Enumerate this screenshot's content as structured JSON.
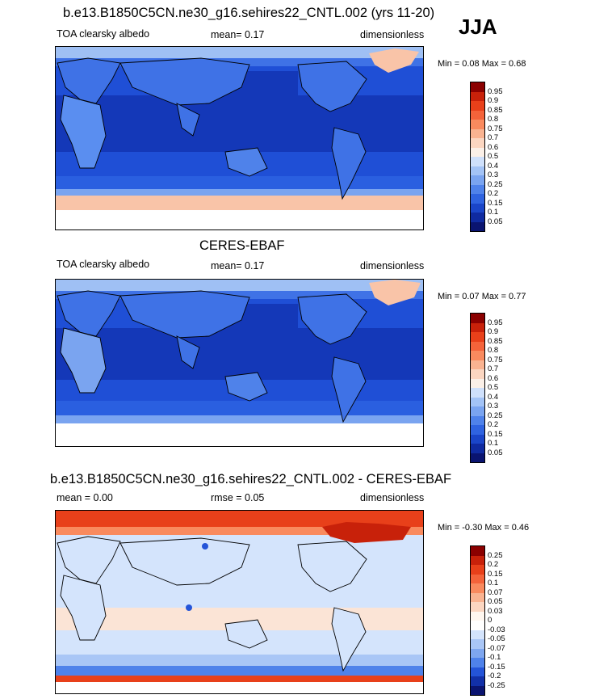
{
  "season": "JJA",
  "panels": [
    {
      "title": "b.e13.B1850C5CN.ne30_g16.sehires22_CNTL.002 (yrs 11-20)",
      "left_label": "TOA clearsky albedo",
      "center_label": "mean=  0.17",
      "right_label": "dimensionless",
      "minmax": "Min =   0.08 Max =   0.68",
      "levels": [
        "0.95",
        "0.9",
        "0.85",
        "0.8",
        "0.75",
        "0.7",
        "0.6",
        "0.5",
        "0.4",
        "0.3",
        "0.25",
        "0.2",
        "0.15",
        "0.1",
        "0.05"
      ],
      "colors": [
        "#8b0000",
        "#c8210a",
        "#e8401a",
        "#f4633a",
        "#f98a5e",
        "#f9b391",
        "#fbd6c1",
        "#fbf0e8",
        "#cfe0fb",
        "#a3c3f6",
        "#7aa4f0",
        "#4f82ea",
        "#2f63e0",
        "#1a45c8",
        "#0f2aa0",
        "#0a1470"
      ]
    },
    {
      "title": "CERES-EBAF",
      "left_label": "TOA clearsky albedo",
      "center_label": "mean=  0.17",
      "right_label": "dimensionless",
      "minmax": "Min =   0.07 Max =   0.77",
      "levels": [
        "0.95",
        "0.9",
        "0.85",
        "0.8",
        "0.75",
        "0.7",
        "0.6",
        "0.5",
        "0.4",
        "0.3",
        "0.25",
        "0.2",
        "0.15",
        "0.1",
        "0.05"
      ],
      "colors": [
        "#8b0000",
        "#c8210a",
        "#e8401a",
        "#f4633a",
        "#f98a5e",
        "#f9b391",
        "#fbd6c1",
        "#fbf0e8",
        "#cfe0fb",
        "#a3c3f6",
        "#7aa4f0",
        "#4f82ea",
        "#2f63e0",
        "#1a45c8",
        "#0f2aa0",
        "#0a1470"
      ]
    },
    {
      "title": "b.e13.B1850C5CN.ne30_g16.sehires22_CNTL.002 - CERES-EBAF",
      "left_label": "mean =   0.00",
      "center_label": "rmse =   0.05",
      "right_label": "dimensionless",
      "minmax": "Min =  -0.30 Max =   0.46",
      "levels": [
        "0.25",
        "0.2",
        "0.15",
        "0.1",
        "0.07",
        "0.05",
        "0.03",
        "0",
        "-0.03",
        "-0.05",
        "-0.07",
        "-0.1",
        "-0.15",
        "-0.2",
        "-0.25"
      ],
      "colors": [
        "#8b0000",
        "#c8210a",
        "#e8401a",
        "#f4633a",
        "#f98a5e",
        "#f9b391",
        "#fbd6c1",
        "#fff7f0",
        "#ffffff",
        "#d4e4fc",
        "#a9c6f6",
        "#7ea6ef",
        "#4f82ea",
        "#2454d8",
        "#1230a8",
        "#0a1470"
      ]
    }
  ]
}
